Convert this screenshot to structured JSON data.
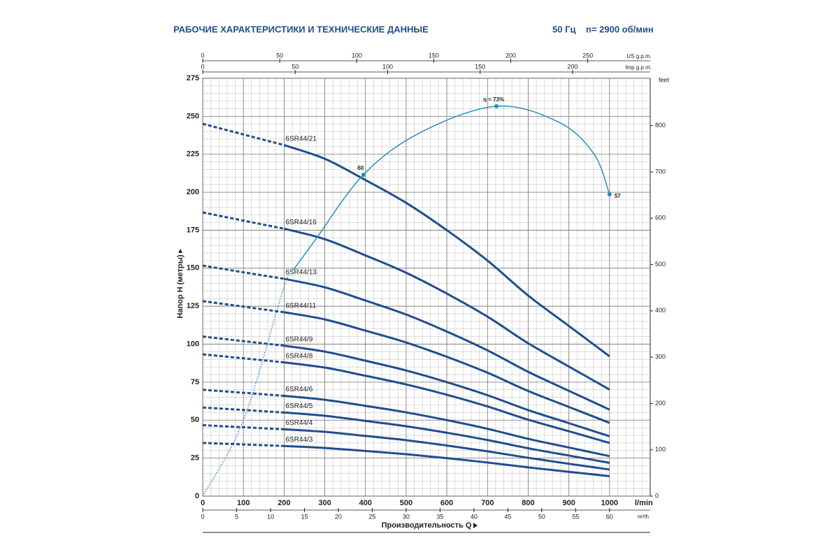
{
  "chart_data": {
    "type": "line",
    "title": "РАБОЧИЕ ХАРАКТЕРИСТИКИ И ТЕХНИЧЕСКИЕ ДАННЫЕ",
    "frequency": "50 Гц",
    "speed": "n= 2900 об/мин",
    "x_label": "Производительность Q",
    "x_unit": "l/min",
    "y_label": "Напор H (метры)",
    "xlim": [
      0,
      1100
    ],
    "xticks": [
      0,
      100,
      200,
      300,
      400,
      500,
      600,
      700,
      800,
      900,
      1000
    ],
    "ylim": [
      0,
      275
    ],
    "yticks": [
      0,
      25,
      50,
      75,
      100,
      125,
      150,
      175,
      200,
      225,
      250,
      275
    ],
    "grid": true,
    "x_secondary": [
      {
        "unit": "US g.p.m.",
        "lim": [
          0,
          290.6
        ],
        "ticks": [
          0,
          50,
          100,
          150,
          200,
          250
        ],
        "position": "top"
      },
      {
        "unit": "Imp g.p.m.",
        "lim": [
          0,
          242
        ],
        "ticks": [
          0,
          50,
          100,
          150,
          200
        ],
        "position": "top"
      },
      {
        "unit": "m³/h",
        "lim": [
          0,
          66
        ],
        "ticks": [
          0,
          5,
          10,
          15,
          20,
          25,
          30,
          35,
          40,
          45,
          50,
          55,
          60
        ],
        "position": "bottom"
      }
    ],
    "y2_unit": "feet",
    "y2lim": [
      0,
      902.2
    ],
    "y2ticks": [
      0,
      100,
      200,
      300,
      400,
      500,
      600,
      700,
      800
    ],
    "x": [
      0,
      100,
      200,
      300,
      400,
      500,
      600,
      700,
      800,
      900,
      1000
    ],
    "series": [
      {
        "name": "6SR44/21",
        "color": "#1f4e8c",
        "values": [
          245,
          238,
          231,
          222,
          208,
          193,
          175,
          155,
          132,
          112,
          92
        ]
      },
      {
        "name": "6SR44/16",
        "color": "#1f4e8c",
        "values": [
          186.7,
          181.3,
          176,
          169.1,
          158.4,
          147,
          133.3,
          118.1,
          100.6,
          85.3,
          70.1
        ]
      },
      {
        "name": "6SR44/13",
        "color": "#1f4e8c",
        "values": [
          151.7,
          147.3,
          143,
          137.4,
          128.7,
          119.5,
          108.3,
          95.9,
          81.8,
          69.3,
          56.9
        ]
      },
      {
        "name": "6SR44/11",
        "color": "#1f4e8c",
        "values": [
          128.3,
          124.7,
          121,
          116.3,
          108.9,
          101.1,
          91.7,
          81.2,
          69.2,
          58.7,
          48.2
        ]
      },
      {
        "name": "6SR44/9",
        "color": "#1f4e8c",
        "values": [
          105,
          102,
          99,
          95.1,
          89.1,
          82.7,
          75,
          66.4,
          56.6,
          48,
          39.4
        ]
      },
      {
        "name": "6SR44/8",
        "color": "#1f4e8c",
        "values": [
          93.3,
          90.7,
          88,
          84.6,
          79.2,
          73.5,
          66.7,
          59,
          50.3,
          42.7,
          35
        ]
      },
      {
        "name": "6SR44/6",
        "color": "#1f4e8c",
        "values": [
          70,
          68,
          66,
          63.4,
          59.4,
          55.1,
          50,
          44.3,
          37.7,
          32,
          26.3
        ]
      },
      {
        "name": "6SR44/5",
        "color": "#1f4e8c",
        "values": [
          58.3,
          56.7,
          55,
          52.9,
          49.5,
          46,
          41.7,
          36.9,
          31.5,
          26.7,
          21.9
        ]
      },
      {
        "name": "6SR44/4",
        "color": "#1f4e8c",
        "values": [
          46.7,
          45.3,
          44,
          42.3,
          39.6,
          36.8,
          33.3,
          29.5,
          25.2,
          21.3,
          17.5
        ]
      },
      {
        "name": "6SR44/3",
        "color": "#1f4e8c",
        "values": [
          35,
          34,
          33,
          31.7,
          29.7,
          27.6,
          25,
          22.1,
          18.9,
          16,
          13.1
        ]
      }
    ],
    "efficiency": {
      "color": "#2a8fc0",
      "x": [
        0,
        100,
        200,
        223,
        275,
        395,
        533,
        722,
        876,
        962,
        1000
      ],
      "values": [
        0,
        50,
        138,
        149,
        168,
        211.5,
        239,
        256.6,
        246,
        225,
        198.6
      ],
      "points": [
        {
          "index": 5,
          "label": "60"
        },
        {
          "index": 7,
          "label": "η = 73%"
        },
        {
          "index": 10,
          "label": "57"
        }
      ]
    }
  }
}
